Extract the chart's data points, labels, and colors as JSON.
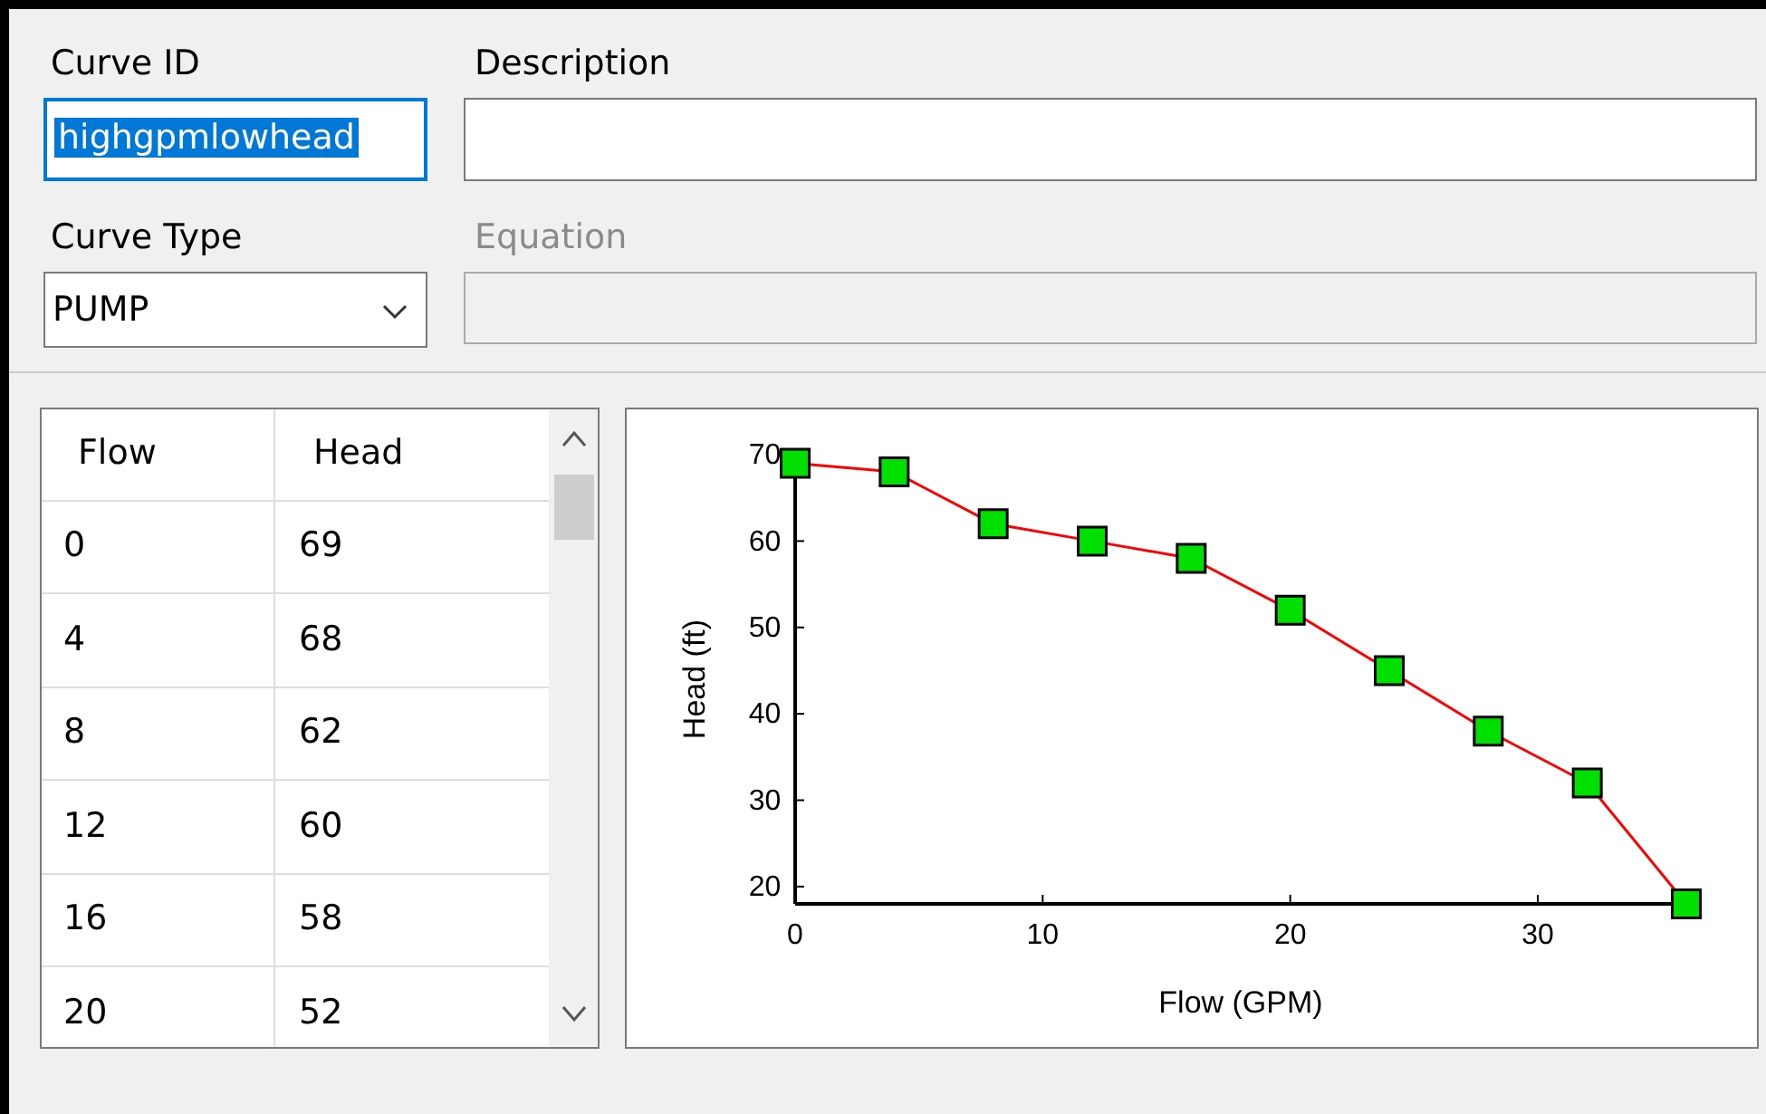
{
  "chart_data": {
    "type": "line",
    "xlabel": "Flow (GPM)",
    "ylabel": "Head (ft)",
    "x": [
      0,
      4,
      8,
      12,
      16,
      20,
      24,
      28,
      32,
      36
    ],
    "series": [
      {
        "color": "#ff0000",
        "values": [
          69,
          68,
          62,
          60,
          58,
          52,
          45,
          38,
          32,
          18
        ]
      }
    ],
    "xlim": [
      0,
      36
    ],
    "xticks": [
      0,
      10,
      20,
      30
    ],
    "ylim": [
      18,
      70
    ],
    "yticks": [
      20,
      30,
      40,
      50,
      60,
      70
    ],
    "marker": "square",
    "line_style": "solid",
    "grid": false,
    "annotations": [
      "Curve ID",
      "highgpmlowhead",
      "Description",
      "Curve Type",
      "PUMP",
      "Equation",
      "Flow",
      "Head",
      "0",
      "69",
      "4",
      "68",
      "8",
      "62",
      "12",
      "60",
      "16",
      "58",
      "20",
      "52"
    ]
  }
}
